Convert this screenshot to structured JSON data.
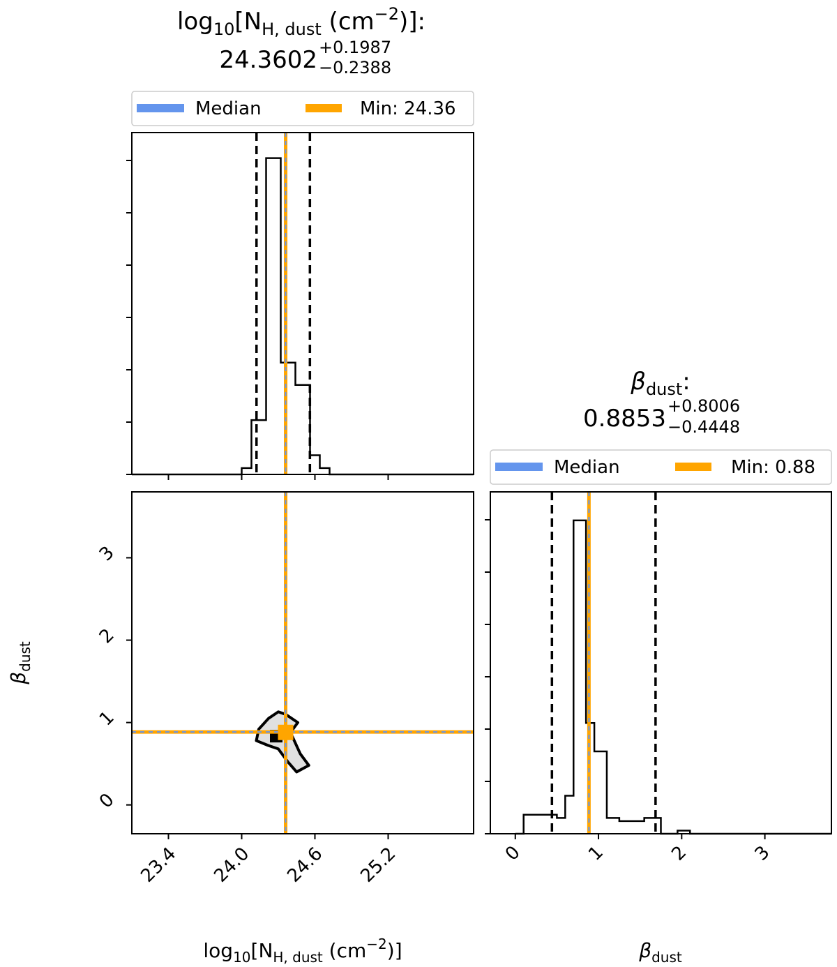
{
  "colors": {
    "median": "#6495ED",
    "min": "#FFA500",
    "hist": "#000000",
    "quantile": "#000000",
    "contour_fill": "#e0e0e0"
  },
  "titles": {
    "nh": {
      "name_main": "log",
      "name_sub": "10",
      "name_rest": "[N",
      "name_rest_sub": "H, dust",
      "name_unit": " (cm",
      "name_unit_sup": "−2",
      "name_close": ")]:",
      "value": "24.3602",
      "plus": "+0.1987",
      "minus": "−0.2388"
    },
    "beta": {
      "name_main": "β",
      "name_sub": "dust",
      "name_close": ":",
      "value": "0.8853",
      "plus": "+0.8006",
      "minus": "−0.4448"
    }
  },
  "legends": {
    "nh": {
      "median_label": "Median",
      "min_label": "Min: 24.36"
    },
    "beta": {
      "median_label": "Median",
      "min_label": "Min: 0.88"
    }
  },
  "axis_labels": {
    "x_nh": {
      "main": "log",
      "sub": "10",
      "rest": "[N",
      "rest_sub": "H, dust",
      "unit": " (cm",
      "unit_sup": "−2",
      "close": ")]"
    },
    "x_beta": {
      "main": "β",
      "sub": "dust"
    },
    "y_beta": {
      "main": "β",
      "sub": "dust"
    }
  },
  "chart_data": [
    {
      "type": "histogram",
      "panel": "nh-marginal",
      "xlim": [
        23.1,
        25.9
      ],
      "ylim": [
        0,
        1.07
      ],
      "bin_edges": [
        23.1,
        24.0,
        24.08,
        24.2,
        24.32,
        24.44,
        24.56,
        24.64,
        24.72,
        25.9
      ],
      "heights": [
        0,
        0.02,
        0.17,
        0.99,
        0.35,
        0.28,
        0.06,
        0.02,
        0.0
      ],
      "median": 24.3602,
      "min_value": 24.36,
      "quantiles": [
        24.1214,
        24.5589
      ]
    },
    {
      "type": "histogram",
      "panel": "beta-marginal",
      "xlim": [
        -0.3,
        3.8
      ],
      "ylim": [
        0,
        1.08
      ],
      "bin_edges": [
        0.0,
        0.1,
        0.5,
        0.6,
        0.7,
        0.85,
        0.95,
        1.1,
        1.25,
        1.4,
        1.55,
        1.75,
        1.95,
        2.1,
        2.3,
        3.8
      ],
      "heights": [
        0.0,
        0.06,
        0.05,
        0.12,
        0.99,
        0.35,
        0.26,
        0.05,
        0.04,
        0.04,
        0.05,
        0.0,
        0.01,
        0.0,
        0.0
      ],
      "median": 0.8853,
      "min_value": 0.88,
      "quantiles": [
        0.4405,
        1.6859
      ]
    },
    {
      "type": "contour",
      "panel": "joint",
      "xlabel": "log10[NH, dust (cm−2)]",
      "ylabel": "βdust",
      "xlim": [
        23.1,
        25.9
      ],
      "ylim": [
        -0.35,
        3.8
      ],
      "xticks": [
        23.4,
        24.0,
        24.6,
        25.2
      ],
      "yticks": [
        0,
        1,
        2,
        3
      ],
      "median": [
        24.3602,
        0.8853
      ],
      "min_point": [
        24.36,
        0.88
      ],
      "contour_level": [
        [
          24.12,
          0.78
        ],
        [
          24.14,
          0.92
        ],
        [
          24.22,
          1.05
        ],
        [
          24.3,
          1.13
        ],
        [
          24.36,
          1.1
        ],
        [
          24.46,
          1.0
        ],
        [
          24.4,
          0.88
        ],
        [
          24.48,
          0.62
        ],
        [
          24.55,
          0.48
        ],
        [
          24.45,
          0.4
        ],
        [
          24.38,
          0.52
        ],
        [
          24.3,
          0.68
        ],
        [
          24.22,
          0.72
        ],
        [
          24.12,
          0.78
        ]
      ]
    }
  ],
  "ticks": {
    "nh_x": [
      "23.4",
      "24.0",
      "24.6",
      "25.2"
    ],
    "beta_x": [
      "0",
      "1",
      "2",
      "3"
    ],
    "beta_y": [
      "0",
      "1",
      "2",
      "3"
    ]
  }
}
